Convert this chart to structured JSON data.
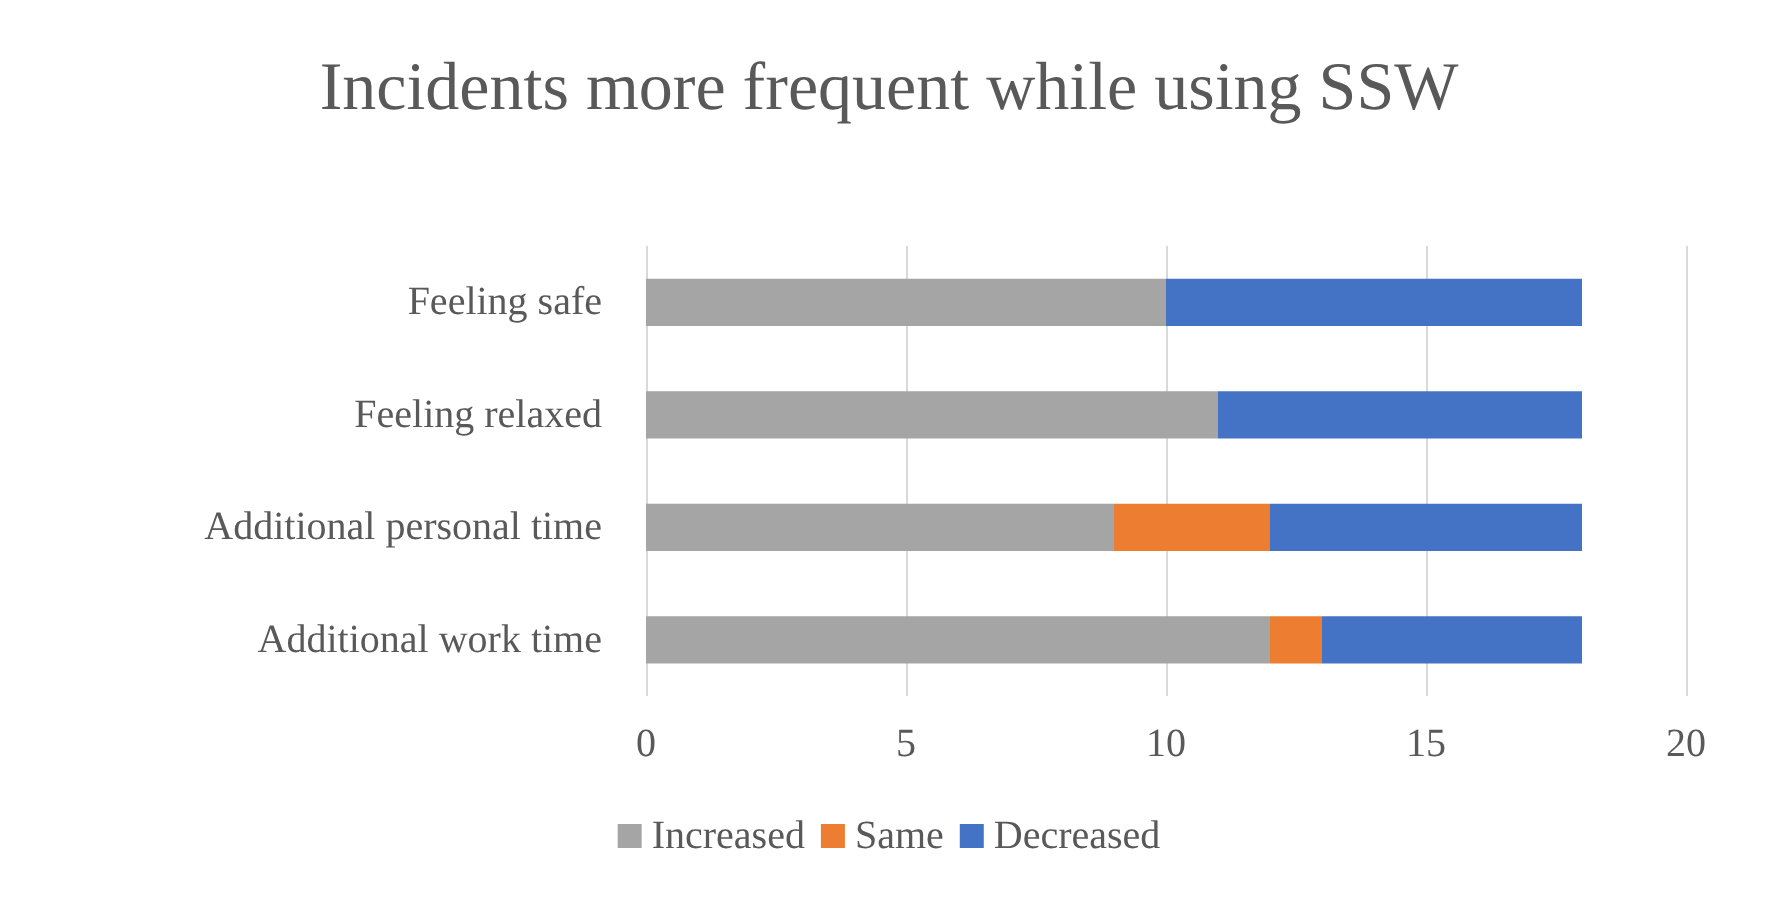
{
  "chart_data": {
    "type": "bar",
    "orientation": "horizontal",
    "stacked": true,
    "title": "Incidents more frequent while using SSW",
    "categories": [
      "Feeling safe",
      "Feeling relaxed",
      "Additional personal time",
      "Additional work time"
    ],
    "series": [
      {
        "name": "Increased",
        "color": "#a5a5a5",
        "values": [
          10,
          11,
          9,
          12
        ]
      },
      {
        "name": "Same",
        "color": "#ed7d31",
        "values": [
          0,
          0,
          3,
          1
        ]
      },
      {
        "name": "Decreased",
        "color": "#4472c4",
        "values": [
          8,
          7,
          6,
          5
        ]
      }
    ],
    "xlim": [
      0,
      20
    ],
    "xticks": [
      0,
      5,
      10,
      15,
      20
    ],
    "grid": "x",
    "legend": "bottom"
  }
}
